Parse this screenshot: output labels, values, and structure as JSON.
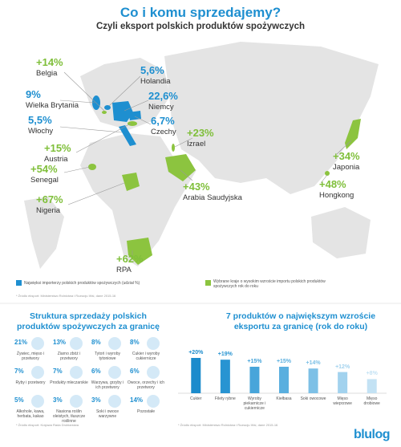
{
  "header": {
    "title": "Co i komu sprzedajemy?",
    "subtitle": "Czyli eksport polskich produktów spożywczych"
  },
  "map": {
    "importers": [
      {
        "country": "Holandia",
        "share": "5,6%"
      },
      {
        "country": "Niemcy",
        "share": "22,6%"
      },
      {
        "country": "Wielka Brytania",
        "share": "9%"
      },
      {
        "country": "Włochy",
        "share": "5,5%"
      },
      {
        "country": "Czechy",
        "share": "6,7%"
      }
    ],
    "growth": [
      {
        "country": "Belgia",
        "change": "+14%"
      },
      {
        "country": "Austria",
        "change": "+15%"
      },
      {
        "country": "Senegal",
        "change": "+54%"
      },
      {
        "country": "Nigeria",
        "change": "+67%"
      },
      {
        "country": "RPA",
        "change": "+62%"
      },
      {
        "country": "Izrael",
        "change": "+23%"
      },
      {
        "country": "Arabia Saudyjska",
        "change": "+43%"
      },
      {
        "country": "Japonia",
        "change": "+34%"
      },
      {
        "country": "Hongkong",
        "change": "+48%"
      }
    ],
    "legend": {
      "importers": "Najwięksi importerzy polskich produktów spożywczych (udział %)",
      "growth": "Wybrane kraje o wysokim wzroście importu polskich produktów spożywczych rok do roku"
    },
    "source": "* Źródło eksport: Ministerstwo Rolnictwa i Rozwoju Wsi, dane 2015-16"
  },
  "structure": {
    "title": "Struktura sprzedaży polskich produktów spożywczych za granicę",
    "items": [
      {
        "share": "21%",
        "label": "Żywiec, mięso i przetwory"
      },
      {
        "share": "13%",
        "label": "Ziarno zbóż i przetwory"
      },
      {
        "share": "8%",
        "label": "Tytoń i wyroby tytoniowe"
      },
      {
        "share": "8%",
        "label": "Cukier i wyroby cukiernicze"
      },
      {
        "share": "7%",
        "label": "Ryby i przetwory"
      },
      {
        "share": "7%",
        "label": "Produkty mleczarskie"
      },
      {
        "share": "6%",
        "label": "Warzywa, grzyby i ich przetwory"
      },
      {
        "share": "6%",
        "label": "Owoce, orzechy i ich przetwory"
      },
      {
        "share": "5%",
        "label": "Alkohole, kawa, herbata, kakao"
      },
      {
        "share": "3%",
        "label": "Nasiona roślin oleistych, tłuszcze roślinne"
      },
      {
        "share": "3%",
        "label": "Soki i owoce warzywne"
      },
      {
        "share": "14%",
        "label": "Pozostałe"
      }
    ],
    "source": "* Źródło eksport: Krajowa Rada Drobiarstwa"
  },
  "chart_data": {
    "type": "bar",
    "title": "7 produktów o największym wzroście eksportu za granicę (rok do roku)",
    "categories": [
      "Cukier",
      "Filety rybne",
      "Wyroby piekarnicze i cukiernicze",
      "Kiełbasa",
      "Soki owocowe",
      "Mięso wieprzowe",
      "Mięso drobiowe"
    ],
    "values": [
      20,
      19,
      15,
      15,
      14,
      12,
      8
    ],
    "value_labels": [
      "+20%",
      "+19%",
      "+15%",
      "+15%",
      "+14%",
      "+12%",
      "+8%"
    ],
    "colors": [
      "#1b8bcc",
      "#2894d2",
      "#48a5da",
      "#5aafdf",
      "#7dc0e6",
      "#a2d2ee",
      "#c3e2f4"
    ],
    "source": "* Źródło eksport: Ministerstwo Rolnictwa i Rozwoju Wsi, dane 2015-16"
  },
  "footer": {
    "logo": "blulog"
  }
}
